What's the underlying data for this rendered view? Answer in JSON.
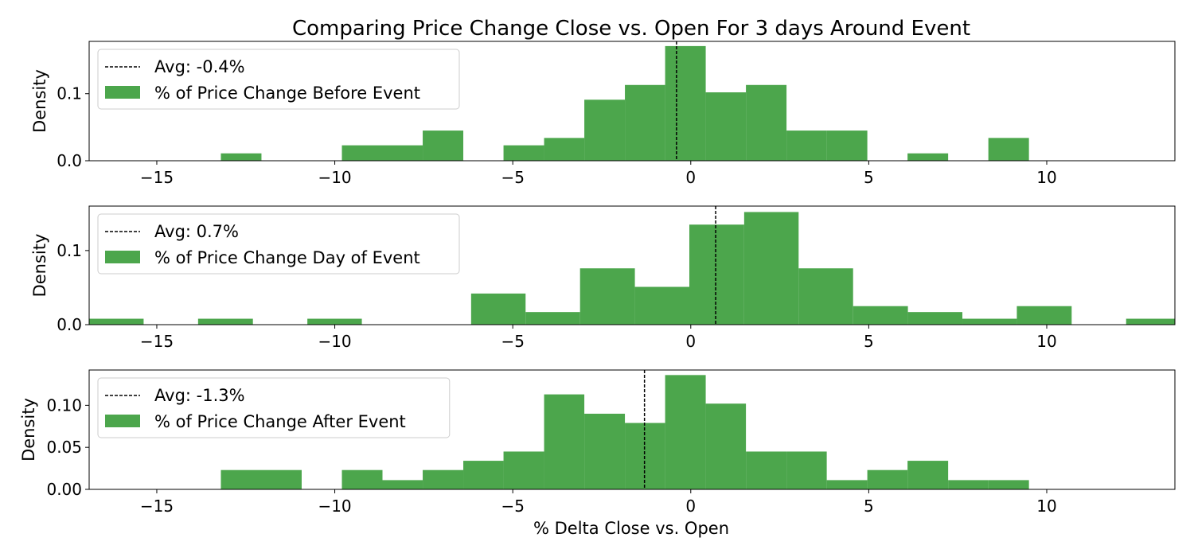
{
  "figure": {
    "title": "Comparing Price Change Close vs. Open For 3 days Around Event",
    "xlabel": "% Delta Close vs. Open"
  },
  "chart_data": [
    {
      "type": "bar",
      "subtype": "histogram",
      "ylabel": "Density",
      "legend": [
        "Avg: -0.4%",
        "% of Price Change Before Event"
      ],
      "legend_position": "top-left",
      "avg_value": -0.4,
      "xlim": [
        -16.9,
        13.6
      ],
      "ylim": [
        0,
        0.178
      ],
      "xticks": [
        -15,
        -10,
        -5,
        0,
        5,
        10
      ],
      "xtick_labels": [
        "−15",
        "−10",
        "−5",
        "0",
        "5",
        "10"
      ],
      "yticks": [
        0,
        0.1
      ],
      "ytick_labels": [
        "0.0",
        "0.1"
      ],
      "color": "#4ca64c",
      "bins": [
        {
          "x0": -13.2,
          "x1": -12.06,
          "value": 0.011
        },
        {
          "x0": -9.8,
          "x1": -8.66,
          "value": 0.023
        },
        {
          "x0": -8.66,
          "x1": -7.53,
          "value": 0.023
        },
        {
          "x0": -7.53,
          "x1": -6.39,
          "value": 0.045
        },
        {
          "x0": -5.26,
          "x1": -4.12,
          "value": 0.023
        },
        {
          "x0": -4.12,
          "x1": -2.99,
          "value": 0.034
        },
        {
          "x0": -2.99,
          "x1": -1.85,
          "value": 0.091
        },
        {
          "x0": -1.85,
          "x1": -0.72,
          "value": 0.113
        },
        {
          "x0": -0.72,
          "x1": 0.42,
          "value": 0.171
        },
        {
          "x0": 0.42,
          "x1": 1.55,
          "value": 0.102
        },
        {
          "x0": 1.55,
          "x1": 2.69,
          "value": 0.113
        },
        {
          "x0": 2.69,
          "x1": 3.82,
          "value": 0.045
        },
        {
          "x0": 3.82,
          "x1": 4.96,
          "value": 0.045
        },
        {
          "x0": 6.09,
          "x1": 7.23,
          "value": 0.011
        },
        {
          "x0": 8.36,
          "x1": 9.5,
          "value": 0.034
        }
      ]
    },
    {
      "type": "bar",
      "subtype": "histogram",
      "ylabel": "Density",
      "legend": [
        "Avg: 0.7%",
        "% of Price Change Day of Event"
      ],
      "legend_position": "top-left",
      "avg_value": 0.7,
      "xlim": [
        -16.9,
        13.6
      ],
      "ylim": [
        0,
        0.16
      ],
      "xticks": [
        -15,
        -10,
        -5,
        0,
        5,
        10
      ],
      "xtick_labels": [
        "−15",
        "−10",
        "−5",
        "0",
        "5",
        "10"
      ],
      "yticks": [
        0,
        0.1
      ],
      "ytick_labels": [
        "0.0",
        "0.1"
      ],
      "color": "#4ca64c",
      "bins": [
        {
          "x0": -16.9,
          "x1": -15.37,
          "value": 0.008
        },
        {
          "x0": -13.84,
          "x1": -12.3,
          "value": 0.008
        },
        {
          "x0": -10.77,
          "x1": -9.24,
          "value": 0.008
        },
        {
          "x0": -6.17,
          "x1": -4.64,
          "value": 0.042
        },
        {
          "x0": -4.64,
          "x1": -3.11,
          "value": 0.017
        },
        {
          "x0": -3.11,
          "x1": -1.57,
          "value": 0.076
        },
        {
          "x0": -1.57,
          "x1": -0.04,
          "value": 0.051
        },
        {
          "x0": -0.04,
          "x1": 1.5,
          "value": 0.135
        },
        {
          "x0": 1.5,
          "x1": 3.03,
          "value": 0.152
        },
        {
          "x0": 3.03,
          "x1": 4.56,
          "value": 0.076
        },
        {
          "x0": 4.56,
          "x1": 6.1,
          "value": 0.025
        },
        {
          "x0": 6.1,
          "x1": 7.63,
          "value": 0.017
        },
        {
          "x0": 7.63,
          "x1": 9.16,
          "value": 0.008
        },
        {
          "x0": 9.16,
          "x1": 10.7,
          "value": 0.025
        },
        {
          "x0": 12.23,
          "x1": 13.6,
          "value": 0.008
        }
      ]
    },
    {
      "type": "bar",
      "subtype": "histogram",
      "ylabel": "Density",
      "legend": [
        "Avg: -1.3%",
        "% of Price Change After Event"
      ],
      "legend_position": "top-left",
      "avg_value": -1.3,
      "xlim": [
        -16.9,
        13.6
      ],
      "ylim": [
        0,
        0.142
      ],
      "xticks": [
        -15,
        -10,
        -5,
        0,
        5,
        10
      ],
      "xtick_labels": [
        "−15",
        "−10",
        "−5",
        "0",
        "5",
        "10"
      ],
      "yticks": [
        0,
        0.05,
        0.1
      ],
      "ytick_labels": [
        "0.00",
        "0.05",
        "0.10"
      ],
      "color": "#4ca64c",
      "bins": [
        {
          "x0": -13.2,
          "x1": -12.07,
          "value": 0.023
        },
        {
          "x0": -12.07,
          "x1": -10.93,
          "value": 0.023
        },
        {
          "x0": -9.8,
          "x1": -8.66,
          "value": 0.023
        },
        {
          "x0": -8.66,
          "x1": -7.53,
          "value": 0.011
        },
        {
          "x0": -7.53,
          "x1": -6.39,
          "value": 0.023
        },
        {
          "x0": -6.39,
          "x1": -5.26,
          "value": 0.034
        },
        {
          "x0": -5.26,
          "x1": -4.12,
          "value": 0.045
        },
        {
          "x0": -4.12,
          "x1": -2.99,
          "value": 0.113
        },
        {
          "x0": -2.99,
          "x1": -1.85,
          "value": 0.09
        },
        {
          "x0": -1.85,
          "x1": -0.72,
          "value": 0.079
        },
        {
          "x0": -0.72,
          "x1": 0.42,
          "value": 0.136
        },
        {
          "x0": 0.42,
          "x1": 1.55,
          "value": 0.102
        },
        {
          "x0": 1.55,
          "x1": 2.69,
          "value": 0.045
        },
        {
          "x0": 2.69,
          "x1": 3.82,
          "value": 0.045
        },
        {
          "x0": 3.82,
          "x1": 4.96,
          "value": 0.011
        },
        {
          "x0": 4.96,
          "x1": 6.09,
          "value": 0.023
        },
        {
          "x0": 6.09,
          "x1": 7.23,
          "value": 0.034
        },
        {
          "x0": 7.23,
          "x1": 8.36,
          "value": 0.011
        },
        {
          "x0": 8.36,
          "x1": 9.5,
          "value": 0.011
        }
      ]
    }
  ]
}
